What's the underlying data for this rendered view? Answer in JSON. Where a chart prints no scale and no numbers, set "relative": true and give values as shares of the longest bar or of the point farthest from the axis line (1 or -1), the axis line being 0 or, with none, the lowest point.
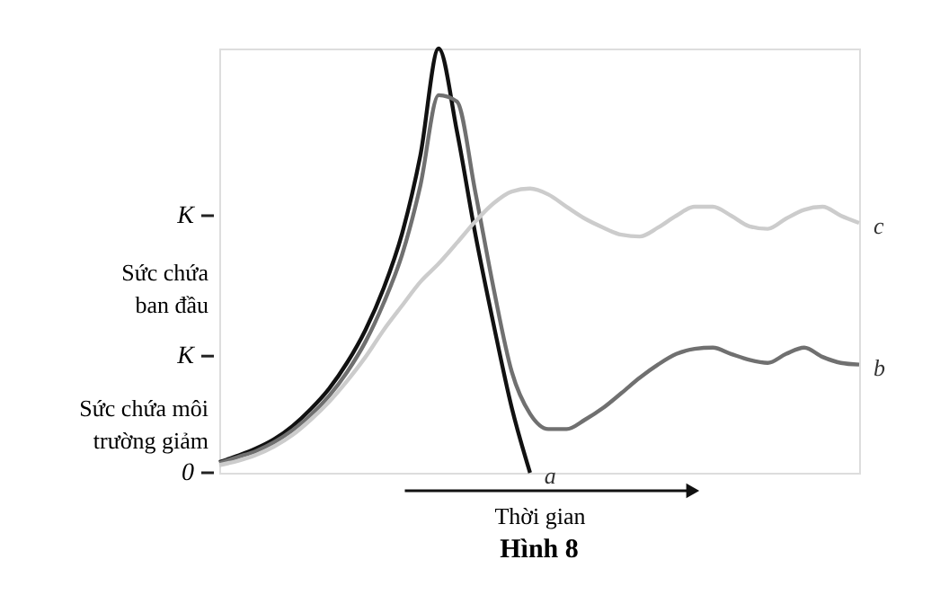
{
  "chart_data": {
    "type": "line",
    "relative": true,
    "title": "Hình 8",
    "xlabel": "Thời gian",
    "categories": [
      null,
      null,
      null,
      null,
      null,
      null,
      null,
      null,
      null,
      null,
      null,
      null,
      null,
      null,
      null,
      null,
      null,
      null,
      null,
      null,
      null,
      null,
      null,
      null,
      null,
      null,
      null,
      null,
      null,
      null,
      null,
      null,
      null,
      null,
      null,
      null
    ],
    "series": [
      {
        "name": "a",
        "color": "#111111",
        "values": [
          0.025,
          0.04,
          0.057,
          0.079,
          0.11,
          0.15,
          0.198,
          0.26,
          0.337,
          0.436,
          0.564,
          0.748,
          1.0,
          0.805,
          0.564,
          0.351,
          0.153,
          0.0,
          null,
          null,
          null,
          null,
          null,
          null,
          null,
          null,
          null,
          null,
          null,
          null,
          null,
          null,
          null,
          null,
          null,
          null
        ]
      },
      {
        "name": "b",
        "color": "#707070",
        "values": [
          0.023,
          0.037,
          0.051,
          0.072,
          0.1,
          0.136,
          0.181,
          0.238,
          0.309,
          0.401,
          0.514,
          0.677,
          0.89,
          0.875,
          0.663,
          0.436,
          0.238,
          0.139,
          0.103,
          0.103,
          0.125,
          0.153,
          0.188,
          0.224,
          0.255,
          0.28,
          0.292,
          0.295,
          0.28,
          0.266,
          0.259,
          0.28,
          0.295,
          0.273,
          0.259,
          0.255
        ]
      },
      {
        "name": "c",
        "color": "#cccccc",
        "values": [
          0.018,
          0.028,
          0.042,
          0.062,
          0.089,
          0.125,
          0.167,
          0.217,
          0.273,
          0.337,
          0.394,
          0.45,
          0.493,
          0.542,
          0.592,
          0.635,
          0.663,
          0.67,
          0.656,
          0.627,
          0.599,
          0.578,
          0.561,
          0.557,
          0.578,
          0.606,
          0.627,
          0.627,
          0.606,
          0.581,
          0.575,
          0.599,
          0.62,
          0.627,
          0.606,
          0.589
        ]
      }
    ],
    "annotations": [
      "K",
      "Sức chứa\nban đầu",
      "K",
      "Sức chứa môi\ntrường giảm",
      "0"
    ],
    "grid": false,
    "legend": false,
    "line_style": "solid",
    "marker": "none"
  }
}
